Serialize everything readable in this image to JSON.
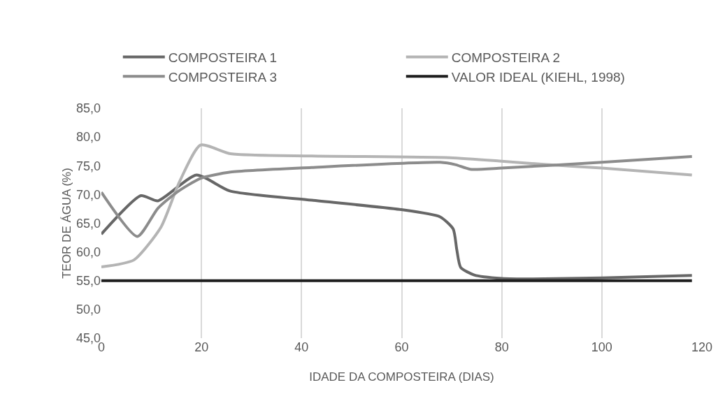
{
  "chart_data": {
    "type": "line",
    "xlabel": "IDADE DA COMPOSTEIRA (DIAS)",
    "ylabel": "TEOR DE ÁGUA (%)",
    "xlim": [
      0,
      120
    ],
    "xticks": [
      0,
      20,
      40,
      60,
      80,
      100,
      120
    ],
    "ylim": [
      45,
      85
    ],
    "yticks": [
      {
        "value": 45,
        "label": "45,0"
      },
      {
        "value": 50,
        "label": "50,0"
      },
      {
        "value": 55,
        "label": "55,0"
      },
      {
        "value": 60,
        "label": "60,0"
      },
      {
        "value": 65,
        "label": "65,0"
      },
      {
        "value": 70,
        "label": "70,0"
      },
      {
        "value": 75,
        "label": "75,0"
      },
      {
        "value": 80,
        "label": "80,0"
      },
      {
        "value": 85,
        "label": "85,0"
      }
    ],
    "grid": "x",
    "legend": "top",
    "marker": "none",
    "line_style": "solid",
    "series": [
      {
        "name": "COMPOSTEIRA 1",
        "color": "#676767",
        "x": [
          0,
          7.9,
          11.3,
          19,
          25.7,
          42,
          59.6,
          67.7,
          70.3,
          71,
          71.8,
          74.5,
          80,
          86,
          100,
          118
        ],
        "values": [
          63.1,
          69.8,
          68.9,
          73.4,
          70.6,
          69.0,
          67.4,
          66.1,
          64.0,
          60.5,
          57.3,
          56.0,
          55.4,
          55.3,
          55.5,
          55.9
        ]
      },
      {
        "name": "COMPOSTEIRA 2",
        "color": "#b4b4b4",
        "x": [
          0,
          6.5,
          11.9,
          15.6,
          19.8,
          25.8,
          42,
          69.6,
          80,
          89,
          100,
          118
        ],
        "values": [
          57.4,
          58.6,
          64.3,
          72.2,
          78.6,
          77.1,
          76.7,
          76.4,
          75.8,
          75.2,
          74.6,
          73.4
        ]
      },
      {
        "name": "COMPOSTEIRA 3",
        "color": "#8c8c8c",
        "x": [
          0,
          7.2,
          11.3,
          15.1,
          19.8,
          25.8,
          42,
          67.7,
          70.7,
          73.7,
          80,
          100,
          118
        ],
        "values": [
          70.4,
          62.7,
          67.6,
          70.4,
          72.8,
          73.9,
          74.7,
          75.6,
          75.2,
          74.4,
          74.6,
          75.6,
          76.6
        ]
      },
      {
        "name": "VALOR IDEAL (KIEHL, 1998)",
        "color": "#1e1e1e",
        "x": [
          0,
          118
        ],
        "values": [
          55,
          55
        ]
      }
    ]
  }
}
